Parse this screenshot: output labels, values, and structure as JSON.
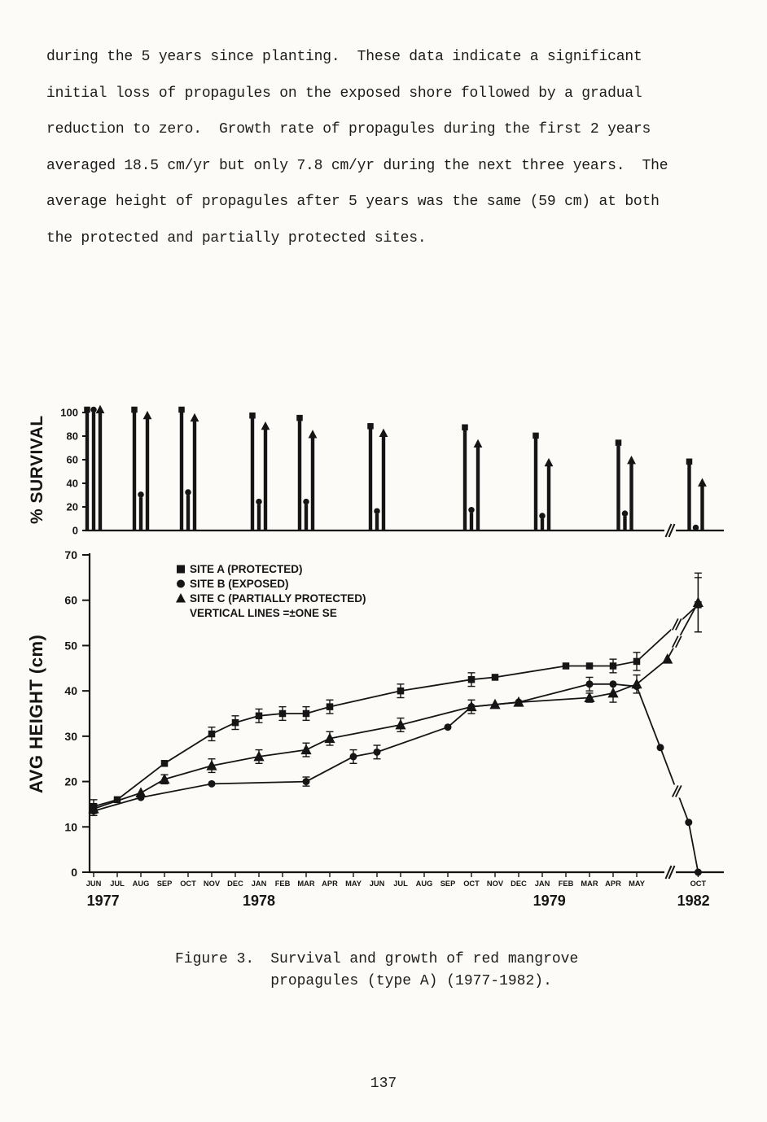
{
  "page": {
    "paragraph_lines": [
      "during the 5 years since planting.  These data indicate a significant",
      "initial loss of propagules on the exposed shore followed by a gradual",
      "reduction to zero.  Growth rate of propagules during the first 2 years",
      "averaged 18.5 cm/yr but only 7.8 cm/yr during the next three years.  The",
      "average height of propagules after 5 years was the same (59 cm) at both",
      "the protected and partially protected sites."
    ],
    "caption": {
      "label": "Figure 3.",
      "line1": "Survival and growth of red mangrove",
      "line2": "propagules (type A) (1977-1982)."
    },
    "page_number": "137"
  },
  "chart_data": [
    {
      "type": "bar",
      "ylabel": "% SURVIVAL",
      "ylim": [
        0,
        100
      ],
      "yticks": [
        0,
        20,
        40,
        60,
        80,
        100
      ],
      "series_names": [
        "SITE A (PROTECTED)",
        "SITE B (EXPOSED)",
        "SITE C (PARTIALLY PROTECTED)"
      ],
      "clusters": [
        {
          "date": "JUN 1977",
          "month_index": 0,
          "A": 100,
          "B": 100,
          "C": 100
        },
        {
          "date": "AUG 1977",
          "month_index": 2,
          "A": 100,
          "B": 28,
          "C": 95
        },
        {
          "date": "OCT 1977",
          "month_index": 4,
          "A": 100,
          "B": 30,
          "C": 93
        },
        {
          "date": "JAN 1978",
          "month_index": 7,
          "A": 95,
          "B": 22,
          "C": 86
        },
        {
          "date": "MAR 1978",
          "month_index": 9,
          "A": 93,
          "B": 22,
          "C": 79
        },
        {
          "date": "JUN 1978",
          "month_index": 12,
          "A": 86,
          "B": 14,
          "C": 80
        },
        {
          "date": "OCT 1978",
          "month_index": 16,
          "A": 85,
          "B": 15,
          "C": 71
        },
        {
          "date": "JAN 1979",
          "month_index": 19,
          "A": 78,
          "B": 10,
          "C": 55
        },
        {
          "date": "MAY 1979",
          "month_index": 22.5,
          "A": 72,
          "B": 12,
          "C": 57
        },
        {
          "date": "OCT 1982",
          "month_index": 25.5,
          "A": 56,
          "B": 0,
          "C": 38
        }
      ],
      "axis_break_between": [
        "MAY 1979",
        "OCT 1982"
      ]
    },
    {
      "type": "line",
      "ylabel": "AVG HEIGHT (cm)",
      "ylim": [
        0,
        70
      ],
      "yticks": [
        0,
        10,
        20,
        30,
        40,
        50,
        60,
        70
      ],
      "x_month_labels": [
        "JUN",
        "JUL",
        "AUG",
        "SEP",
        "OCT",
        "NOV",
        "DEC",
        "JAN",
        "FEB",
        "MAR",
        "APR",
        "MAY",
        "JUN",
        "JUL",
        "AUG",
        "SEP",
        "OCT",
        "NOV",
        "DEC",
        "JAN",
        "FEB",
        "MAR",
        "APR",
        "MAY"
      ],
      "x_extra_label": {
        "text": "OCT",
        "month_index": 25.6
      },
      "year_labels": [
        {
          "text": "1977",
          "month_index": 0.4
        },
        {
          "text": "1978",
          "month_index": 7
        },
        {
          "text": "1979",
          "month_index": 19.3
        },
        {
          "text": "1982",
          "month_index": 25.4
        }
      ],
      "legend": [
        {
          "marker": "square",
          "label": "SITE A (PROTECTED)"
        },
        {
          "marker": "circle",
          "label": "SITE B (EXPOSED)"
        },
        {
          "marker": "triangle",
          "label": "SITE C (PARTIALLY PROTECTED)"
        },
        {
          "marker": "none",
          "label": "VERTICAL LINES =±ONE SE"
        }
      ],
      "series": [
        {
          "name": "SITE A (PROTECTED)",
          "marker": "square",
          "points": [
            [
              0,
              14.5,
              1.5
            ],
            [
              1,
              16,
              0
            ],
            [
              3,
              24,
              0
            ],
            [
              5,
              30.5,
              1.5
            ],
            [
              6,
              33,
              1.5
            ],
            [
              7,
              34.5,
              1.5
            ],
            [
              8,
              35,
              1.5
            ],
            [
              9,
              35,
              1.5
            ],
            [
              10,
              36.5,
              1.5
            ],
            [
              13,
              40,
              1.5
            ],
            [
              16,
              42.5,
              1.5
            ],
            [
              17,
              43,
              0
            ],
            [
              20,
              45.5,
              0
            ],
            [
              21,
              45.5,
              0
            ],
            [
              22,
              45.5,
              1.5
            ],
            [
              23,
              46.5,
              2
            ],
            [
              25.6,
              59,
              6
            ]
          ]
        },
        {
          "name": "SITE B (EXPOSED)",
          "marker": "circle",
          "points": [
            [
              0,
              13.5,
              1
            ],
            [
              2,
              16.5,
              0
            ],
            [
              5,
              19.5,
              0
            ],
            [
              9,
              20,
              1
            ],
            [
              11,
              25.5,
              1.5
            ],
            [
              12,
              26.5,
              1.5
            ],
            [
              15,
              32,
              0
            ],
            [
              16,
              36.5,
              1.5
            ],
            [
              18,
              37.5,
              0
            ],
            [
              21,
              41.5,
              1.5
            ],
            [
              22,
              41.5,
              0
            ],
            [
              23,
              41,
              0
            ],
            [
              24,
              27.5,
              0
            ],
            [
              25.2,
              11,
              0
            ],
            [
              25.6,
              0,
              0
            ]
          ]
        },
        {
          "name": "SITE C (PARTIALLY PROTECTED)",
          "marker": "triangle",
          "points": [
            [
              0,
              14,
              1
            ],
            [
              2,
              17.5,
              0
            ],
            [
              3,
              20.5,
              1
            ],
            [
              5,
              23.5,
              1.5
            ],
            [
              7,
              25.5,
              1.5
            ],
            [
              9,
              27,
              1.5
            ],
            [
              10,
              29.5,
              1.5
            ],
            [
              13,
              32.5,
              1.5
            ],
            [
              16,
              36.5,
              0
            ],
            [
              17,
              37,
              0
            ],
            [
              18,
              37.5,
              0
            ],
            [
              21,
              38.5,
              1
            ],
            [
              22,
              39.5,
              2
            ],
            [
              23,
              41.5,
              2
            ],
            [
              24.3,
              47,
              0
            ],
            [
              25.6,
              59.5,
              6.5
            ]
          ]
        }
      ],
      "axis_break_between": [
        "MAY 1979",
        "OCT 1982"
      ]
    }
  ]
}
